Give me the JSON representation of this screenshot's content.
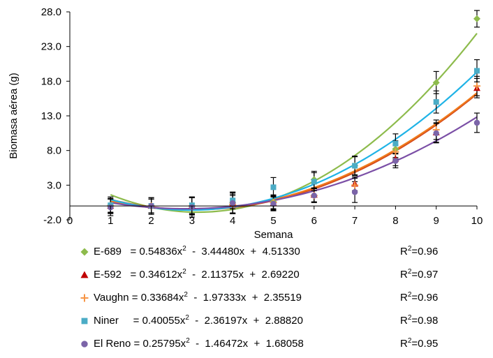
{
  "chart_data": {
    "type": "scatter",
    "xlabel": "Semana",
    "ylabel": "Biomasa aérea (g)",
    "xlim": [
      0,
      10
    ],
    "ylim": [
      -2.0,
      28.0
    ],
    "x_ticks": [
      "0",
      "1",
      "2",
      "3",
      "4",
      "5",
      "6",
      "7",
      "8",
      "9",
      "10"
    ],
    "y_ticks": [
      "-2.0",
      "3.0",
      "8.0",
      "13.0",
      "18.0",
      "23.0",
      "28.0"
    ],
    "grid": false,
    "legend_position": "bottom",
    "series": [
      {
        "name": "E-689",
        "marker": "diamond",
        "color": "#8dbb4c",
        "x": [
          1,
          2,
          3,
          4,
          5,
          6,
          7,
          8,
          9,
          10
        ],
        "y": [
          0.1,
          0.0,
          0.0,
          0.5,
          0.6,
          3.8,
          5.8,
          8.2,
          17.8,
          27.0
        ],
        "err": [
          1.2,
          1.2,
          1.3,
          1.5,
          1.0,
          1.2,
          1.3,
          1.2,
          1.6,
          1.2
        ],
        "fit": {
          "a": 0.54836,
          "b": -3.4448,
          "c": 4.5133,
          "color": "#8dbb4c"
        },
        "equation": {
          "label": "E-689",
          "pad": "   ",
          "a": "0.54836",
          "b": "3.44480",
          "c": "4.51330",
          "r2": "0.96"
        }
      },
      {
        "name": "E-592",
        "marker": "triangle",
        "color": "#c00000",
        "x": [
          1,
          2,
          3,
          4,
          5,
          6,
          7,
          8,
          9,
          10
        ],
        "y": [
          0.0,
          0.0,
          0.0,
          0.3,
          0.4,
          1.6,
          3.2,
          6.8,
          10.6,
          17.0
        ],
        "err": [
          1.0,
          1.0,
          1.2,
          1.4,
          1.0,
          1.0,
          1.0,
          1.0,
          1.4,
          1.4
        ],
        "fit": {
          "a": 0.34612,
          "b": -2.11375,
          "c": 2.6922,
          "color": "#d44a1c"
        },
        "equation": {
          "label": "E-592",
          "pad": "   ",
          "a": "0.34612",
          "b": "2.11375",
          "c": "2.69220",
          "r2": "0.97"
        }
      },
      {
        "name": "Vaughn",
        "marker": "plus",
        "color": "#f79646",
        "x": [
          1,
          2,
          3,
          4,
          5,
          6,
          7,
          8,
          9,
          10
        ],
        "y": [
          0.0,
          0.0,
          0.0,
          0.2,
          0.5,
          1.5,
          3.0,
          7.8,
          11.0,
          17.3
        ],
        "err": [
          1.0,
          1.0,
          1.2,
          1.3,
          1.0,
          1.0,
          1.0,
          1.0,
          1.4,
          1.4
        ],
        "fit": {
          "a": 0.33684,
          "b": -1.97333,
          "c": 2.35519,
          "color": "#f07b1b"
        },
        "equation": {
          "label": "Vaughn",
          "pad": " ",
          "a": "0.33684",
          "b": "1.97333",
          "c": "2.35519",
          "r2": "0.96"
        }
      },
      {
        "name": "Niner",
        "marker": "square",
        "color": "#4bacc6",
        "x": [
          1,
          2,
          3,
          4,
          5,
          6,
          7,
          8,
          9,
          10
        ],
        "y": [
          0.1,
          0.0,
          0.1,
          0.8,
          2.7,
          3.5,
          5.8,
          9.0,
          15.0,
          19.5
        ],
        "err": [
          1.0,
          1.0,
          1.2,
          1.2,
          1.4,
          1.3,
          1.4,
          1.4,
          1.6,
          1.6
        ],
        "fit": {
          "a": 0.40055,
          "b": -2.36197,
          "c": 2.8882,
          "color": "#1fb3e6"
        },
        "equation": {
          "label": "Niner",
          "pad": "     ",
          "a": "0.40055",
          "b": "2.36197",
          "c": "2.88820",
          "r2": "0.98"
        }
      },
      {
        "name": "El Reno",
        "marker": "circle",
        "color": "#7b64a8",
        "x": [
          1,
          2,
          3,
          4,
          5,
          6,
          7,
          8,
          9,
          10
        ],
        "y": [
          -0.2,
          0.0,
          -0.2,
          0.4,
          0.3,
          1.5,
          2.0,
          6.5,
          10.5,
          12.0
        ],
        "err": [
          1.2,
          1.2,
          1.4,
          1.5,
          1.0,
          1.0,
          1.5,
          1.0,
          1.4,
          1.4
        ],
        "fit": {
          "a": 0.25795,
          "b": -1.46472,
          "c": 1.68058,
          "color": "#7b4fa6"
        },
        "equation": {
          "label": "El Reno",
          "pad": " ",
          "a": "0.25795",
          "b": "1.46472",
          "c": "1.68058",
          "r2": "0.95"
        }
      }
    ]
  }
}
